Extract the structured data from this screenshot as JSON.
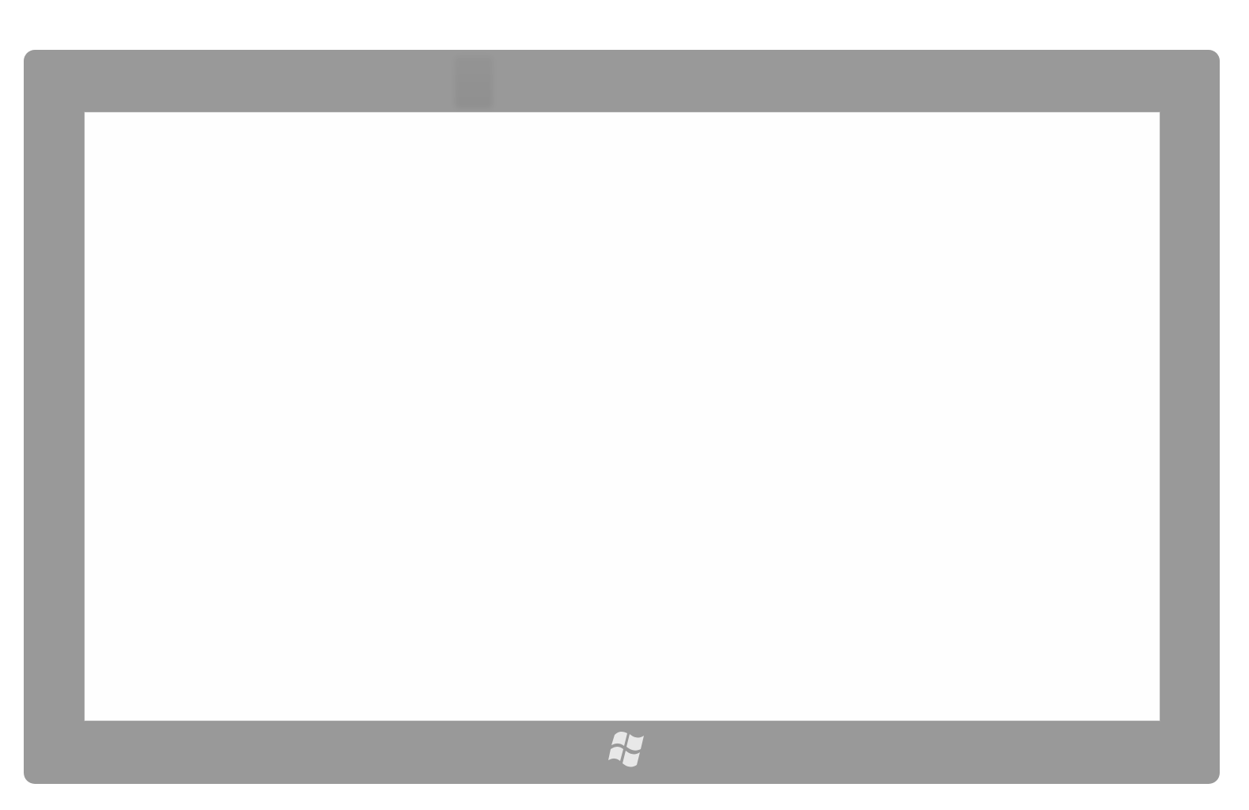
{
  "device": {
    "bezel_color": "#999999",
    "screen_color": "#fefefe",
    "logo_color": "#e8e8e8",
    "start_button_icon": "windows-logo-icon",
    "camera_icon": "camera-icon",
    "screen_state": "blank"
  }
}
